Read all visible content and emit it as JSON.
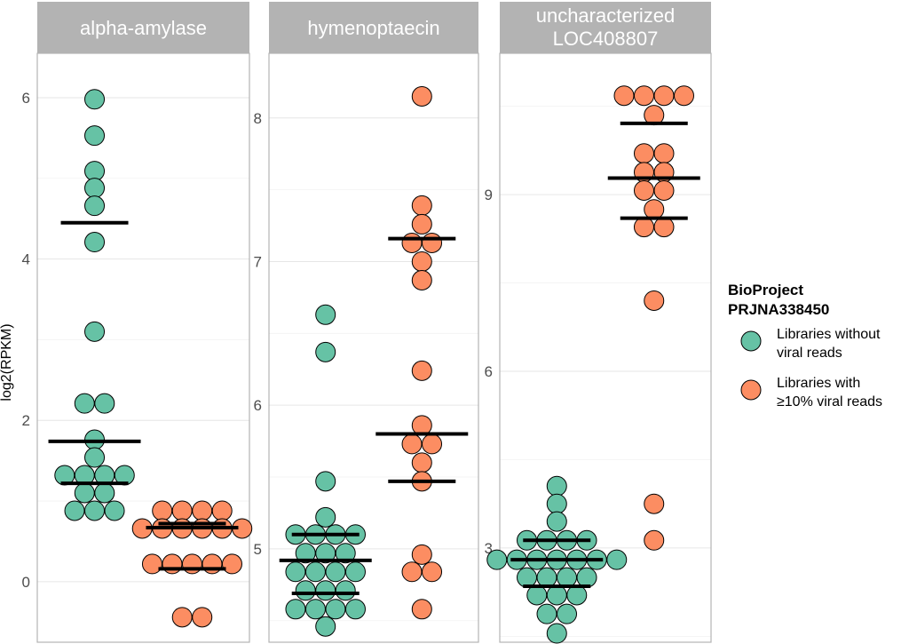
{
  "chart_data": {
    "type": "scatter",
    "ylabel": "log2(RPKM)",
    "colors": {
      "without": "#66c2a5",
      "with": "#fc8d62",
      "strip": "#b3b3b3"
    },
    "legend": {
      "title_lines": [
        "BioProject",
        "PRJNA338450"
      ],
      "placement": "right",
      "entries": [
        {
          "key": "without",
          "lines": [
            "Libraries without",
            "viral reads"
          ]
        },
        {
          "key": "with",
          "lines": [
            "Libraries with",
            "≥10% viral reads"
          ]
        }
      ]
    },
    "panels": [
      {
        "title_lines": [
          "alpha-amylase"
        ],
        "ylim": [
          -0.75,
          6.55
        ],
        "ticks": [
          0,
          2,
          4,
          6
        ],
        "tick_labels": [
          "0",
          "2",
          "4",
          "6"
        ],
        "groups": [
          {
            "key": "without",
            "quartiles": [
              1.22,
              1.74,
              4.45
            ],
            "values": [
              5.98,
              5.53,
              5.09,
              4.88,
              4.66,
              4.21,
              3.1,
              2.21,
              2.21,
              1.76,
              1.54,
              1.32,
              1.32,
              1.32,
              1.32,
              1.1,
              1.1,
              0.88,
              0.88,
              0.88
            ]
          },
          {
            "key": "with",
            "quartiles": [
              0.16,
              0.67,
              0.72
            ],
            "values": [
              0.88,
              0.88,
              0.88,
              0.88,
              0.66,
              0.66,
              0.66,
              0.66,
              0.66,
              0.66,
              0.22,
              0.22,
              0.22,
              0.22,
              0.22,
              -0.44,
              -0.44
            ]
          }
        ]
      },
      {
        "title_lines": [
          "hymenoptaecin"
        ],
        "ylim": [
          4.35,
          8.45
        ],
        "ticks": [
          5,
          6,
          7,
          8
        ],
        "tick_labels": [
          "5",
          "6",
          "7",
          "8"
        ],
        "groups": [
          {
            "key": "without",
            "quartiles": [
              4.69,
              4.92,
              5.1
            ],
            "values": [
              6.63,
              6.37,
              5.47,
              5.22,
              5.1,
              5.1,
              5.1,
              5.1,
              4.97,
              4.97,
              4.97,
              4.84,
              4.84,
              4.84,
              4.84,
              4.71,
              4.71,
              4.71,
              4.58,
              4.58,
              4.58,
              4.58,
              4.46
            ]
          },
          {
            "key": "with",
            "quartiles": [
              5.47,
              5.8,
              7.16
            ],
            "values": [
              8.15,
              7.39,
              7.26,
              7.13,
              7.13,
              7.0,
              6.87,
              6.24,
              5.86,
              5.73,
              5.73,
              5.6,
              5.47,
              4.96,
              4.84,
              4.84,
              4.58
            ]
          }
        ]
      },
      {
        "title_lines": [
          "uncharacterized",
          "LOC408807"
        ],
        "ylim": [
          1.4,
          11.4
        ],
        "ticks": [
          3,
          6,
          9
        ],
        "tick_labels": [
          "3",
          "6",
          "9"
        ],
        "groups": [
          {
            "key": "without",
            "quartiles": [
              2.35,
              2.8,
              3.13
            ],
            "values": [
              4.05,
              3.75,
              3.45,
              3.13,
              3.13,
              3.13,
              3.13,
              2.8,
              2.8,
              2.8,
              2.8,
              2.8,
              2.8,
              2.8,
              2.5,
              2.5,
              2.5,
              2.5,
              2.2,
              2.2,
              2.2,
              1.88,
              1.88,
              1.55
            ]
          },
          {
            "key": "with",
            "quartiles": [
              8.6,
              9.28,
              10.21
            ],
            "values": [
              10.68,
              10.68,
              10.68,
              10.68,
              10.35,
              9.7,
              9.7,
              9.38,
              9.38,
              9.07,
              9.07,
              8.75,
              8.45,
              8.45,
              7.2,
              3.75,
              3.13
            ]
          }
        ]
      }
    ]
  }
}
